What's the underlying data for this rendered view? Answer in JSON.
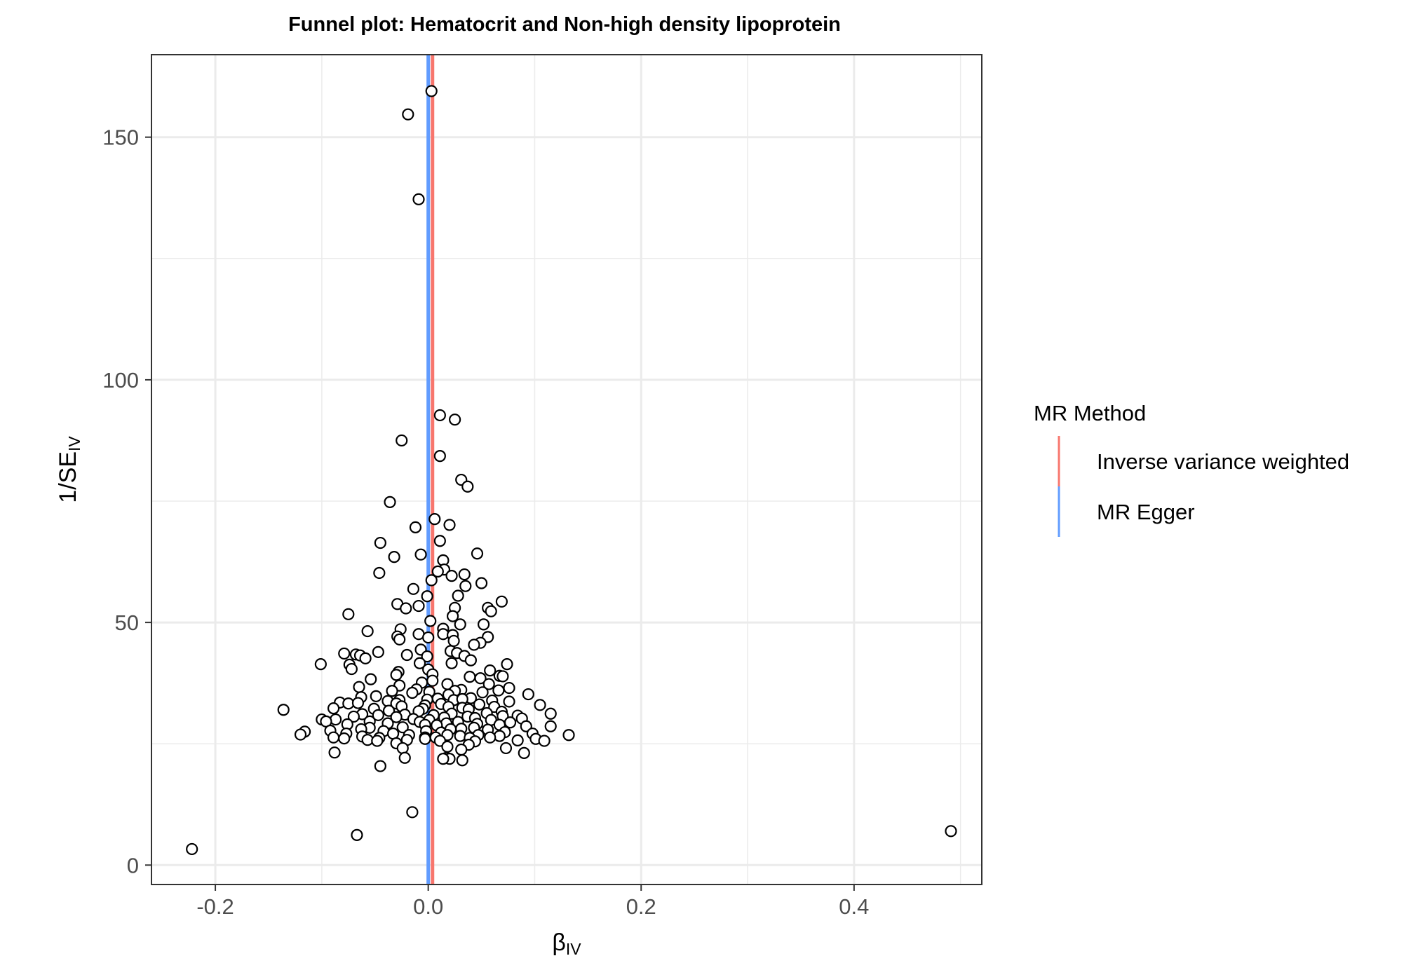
{
  "chart_data": {
    "type": "scatter",
    "title": "Funnel plot: Hematocrit and Non-high density lipoprotein",
    "xlabel": {
      "main": "β",
      "sub": "IV"
    },
    "ylabel": {
      "main": "1/SE",
      "sub": "IV"
    },
    "xlim": [
      -0.26,
      0.52
    ],
    "ylim": [
      -4,
      167
    ],
    "x_ticks": [
      -0.2,
      0.0,
      0.2,
      0.4
    ],
    "x_tick_labels": [
      "-0.2",
      "0.0",
      "0.2",
      "0.4"
    ],
    "y_ticks": [
      0,
      50,
      100,
      150
    ],
    "y_tick_labels": [
      "0",
      "50",
      "100",
      "150"
    ],
    "grid": true,
    "legend": {
      "title": "MR Method",
      "placement": "right",
      "entries": [
        {
          "label": "Inverse variance weighted",
          "color": "#F8766D"
        },
        {
          "label": "MR Egger",
          "color": "#619CFF"
        }
      ]
    },
    "vlines": [
      {
        "name": "Inverse variance weighted",
        "x": 0.004,
        "color": "#F8766D"
      },
      {
        "name": "MR Egger",
        "x": 0.0,
        "color": "#619CFF"
      }
    ],
    "series": [
      {
        "points": [
          [
            0.003,
            159.5
          ],
          [
            -0.019,
            154.7
          ],
          [
            -0.009,
            137.2
          ],
          [
            0.011,
            92.7
          ],
          [
            0.025,
            91.8
          ],
          [
            -0.025,
            87.5
          ],
          [
            0.011,
            84.3
          ],
          [
            0.031,
            79.4
          ],
          [
            0.037,
            78.0
          ],
          [
            -0.036,
            74.8
          ],
          [
            0.006,
            71.3
          ],
          [
            0.02,
            70.1
          ],
          [
            -0.012,
            69.6
          ],
          [
            0.011,
            66.8
          ],
          [
            -0.045,
            66.4
          ],
          [
            0.046,
            64.2
          ],
          [
            -0.007,
            64.0
          ],
          [
            -0.032,
            63.5
          ],
          [
            0.014,
            62.8
          ],
          [
            0.015,
            60.9
          ],
          [
            0.009,
            60.5
          ],
          [
            -0.046,
            60.2
          ],
          [
            0.034,
            59.9
          ],
          [
            0.022,
            59.6
          ],
          [
            0.003,
            58.7
          ],
          [
            0.05,
            58.1
          ],
          [
            0.035,
            57.5
          ],
          [
            -0.014,
            56.9
          ],
          [
            0.028,
            55.5
          ],
          [
            -0.001,
            55.4
          ],
          [
            0.069,
            54.3
          ],
          [
            -0.029,
            53.8
          ],
          [
            -0.009,
            53.4
          ],
          [
            0.025,
            53.0
          ],
          [
            0.056,
            53.0
          ],
          [
            -0.021,
            52.9
          ],
          [
            0.059,
            52.3
          ],
          [
            -0.075,
            51.7
          ],
          [
            0.023,
            51.3
          ],
          [
            0.002,
            50.3
          ],
          [
            0.03,
            49.6
          ],
          [
            0.052,
            49.6
          ],
          [
            0.014,
            48.7
          ],
          [
            -0.026,
            48.6
          ],
          [
            -0.057,
            48.2
          ],
          [
            0.014,
            47.6
          ],
          [
            -0.009,
            47.6
          ],
          [
            0.023,
            47.4
          ],
          [
            -0.029,
            47.1
          ],
          [
            0.056,
            47.0
          ],
          [
            0.0,
            46.9
          ],
          [
            0.024,
            46.2
          ],
          [
            0.049,
            45.8
          ],
          [
            -0.027,
            46.5
          ],
          [
            0.043,
            45.4
          ],
          [
            -0.007,
            44.4
          ],
          [
            0.021,
            44.1
          ],
          [
            -0.047,
            43.9
          ],
          [
            0.027,
            43.7
          ],
          [
            -0.068,
            43.4
          ],
          [
            -0.079,
            43.6
          ],
          [
            -0.064,
            43.2
          ],
          [
            -0.02,
            43.3
          ],
          [
            0.034,
            43.1
          ],
          [
            -0.001,
            43.0
          ],
          [
            -0.059,
            42.6
          ],
          [
            0.04,
            42.2
          ],
          [
            -0.008,
            41.6
          ],
          [
            0.022,
            41.6
          ],
          [
            -0.101,
            41.4
          ],
          [
            -0.074,
            41.3
          ],
          [
            0.074,
            41.4
          ],
          [
            -0.072,
            40.4
          ],
          [
            0.0,
            40.3
          ],
          [
            0.058,
            40.1
          ],
          [
            -0.028,
            39.8
          ],
          [
            0.004,
            39.3
          ],
          [
            -0.03,
            39.2
          ],
          [
            0.067,
            39.0
          ],
          [
            0.07,
            38.9
          ],
          [
            0.039,
            38.8
          ],
          [
            0.049,
            38.5
          ],
          [
            -0.054,
            38.3
          ],
          [
            0.004,
            38.0
          ],
          [
            -0.006,
            37.6
          ],
          [
            0.018,
            37.3
          ],
          [
            0.057,
            37.3
          ],
          [
            -0.027,
            37.0
          ],
          [
            -0.065,
            36.7
          ],
          [
            0.076,
            36.5
          ],
          [
            -0.011,
            36.2
          ],
          [
            0.031,
            36.1
          ],
          [
            0.066,
            36.0
          ],
          [
            -0.034,
            35.9
          ],
          [
            0.025,
            35.9
          ],
          [
            0.001,
            35.7
          ],
          [
            0.051,
            35.6
          ],
          [
            -0.015,
            35.5
          ],
          [
            0.094,
            35.2
          ],
          [
            0.019,
            35.1
          ],
          [
            -0.049,
            34.8
          ],
          [
            -0.063,
            34.6
          ],
          [
            0.04,
            34.4
          ],
          [
            0.009,
            34.3
          ],
          [
            0.024,
            34.0
          ],
          [
            -0.027,
            34.0
          ],
          [
            0.032,
            34.2
          ],
          [
            -0.001,
            34.1
          ],
          [
            -0.038,
            33.8
          ],
          [
            0.06,
            33.9
          ],
          [
            0.076,
            33.7
          ],
          [
            -0.083,
            33.5
          ],
          [
            -0.075,
            33.3
          ],
          [
            -0.066,
            33.4
          ],
          [
            -0.03,
            33.3
          ],
          [
            0.012,
            33.2
          ],
          [
            0.048,
            33.1
          ],
          [
            0.105,
            33.0
          ],
          [
            -0.003,
            32.9
          ],
          [
            -0.025,
            32.7
          ],
          [
            0.019,
            32.6
          ],
          [
            0.032,
            32.4
          ],
          [
            0.062,
            32.6
          ],
          [
            -0.089,
            32.3
          ],
          [
            -0.051,
            32.2
          ],
          [
            -0.005,
            32.2
          ],
          [
            0.038,
            32.1
          ],
          [
            -0.136,
            32.0
          ],
          [
            -0.037,
            31.8
          ],
          [
            -0.009,
            31.7
          ],
          [
            0.069,
            31.6
          ],
          [
            0.115,
            31.2
          ],
          [
            0.022,
            31.2
          ],
          [
            0.055,
            31.3
          ],
          [
            -0.062,
            31.1
          ],
          [
            -0.047,
            30.9
          ],
          [
            -0.022,
            31.0
          ],
          [
            0.005,
            30.9
          ],
          [
            0.084,
            30.8
          ],
          [
            0.07,
            30.7
          ],
          [
            0.037,
            30.6
          ],
          [
            -0.07,
            30.6
          ],
          [
            -0.03,
            30.5
          ],
          [
            0.015,
            30.4
          ],
          [
            0.044,
            30.3
          ],
          [
            0.088,
            30.2
          ],
          [
            -0.1,
            30.0
          ],
          [
            -0.014,
            30.1
          ],
          [
            -0.087,
            30.0
          ],
          [
            0.001,
            29.9
          ],
          [
            0.059,
            29.9
          ],
          [
            -0.096,
            29.6
          ],
          [
            -0.055,
            29.6
          ],
          [
            -0.008,
            29.5
          ],
          [
            0.028,
            29.5
          ],
          [
            0.077,
            29.4
          ],
          [
            -0.038,
            29.2
          ],
          [
            0.017,
            29.2
          ],
          [
            0.046,
            29.1
          ],
          [
            -0.076,
            29.0
          ],
          [
            -0.003,
            28.9
          ],
          [
            0.008,
            28.8
          ],
          [
            0.067,
            28.9
          ],
          [
            0.115,
            28.6
          ],
          [
            0.092,
            28.6
          ],
          [
            -0.024,
            28.4
          ],
          [
            -0.055,
            28.3
          ],
          [
            0.043,
            28.3
          ],
          [
            0.031,
            28.1
          ],
          [
            -0.063,
            28.0
          ],
          [
            0.021,
            28.0
          ],
          [
            0.056,
            27.9
          ],
          [
            -0.092,
            27.7
          ],
          [
            -0.116,
            27.5
          ],
          [
            -0.042,
            27.6
          ],
          [
            -0.002,
            27.6
          ],
          [
            0.012,
            27.3
          ],
          [
            0.072,
            27.4
          ],
          [
            -0.077,
            27.1
          ],
          [
            -0.033,
            27.1
          ],
          [
            0.098,
            27.1
          ],
          [
            -0.12,
            26.9
          ],
          [
            -0.018,
            26.8
          ],
          [
            0.018,
            26.8
          ],
          [
            0.047,
            26.8
          ],
          [
            0.132,
            26.8
          ],
          [
            -0.062,
            26.5
          ],
          [
            0.03,
            26.6
          ],
          [
            0.067,
            26.6
          ],
          [
            -0.089,
            26.3
          ],
          [
            -0.046,
            26.2
          ],
          [
            -0.003,
            26.3
          ],
          [
            0.007,
            26.3
          ],
          [
            0.039,
            26.2
          ],
          [
            0.058,
            26.3
          ],
          [
            -0.079,
            26.1
          ],
          [
            -0.003,
            26.0
          ],
          [
            0.101,
            26.0
          ],
          [
            -0.057,
            25.8
          ],
          [
            -0.02,
            25.8
          ],
          [
            0.084,
            25.7
          ],
          [
            -0.048,
            25.6
          ],
          [
            0.011,
            25.6
          ],
          [
            0.044,
            25.5
          ],
          [
            0.109,
            25.6
          ],
          [
            -0.03,
            25.1
          ],
          [
            0.038,
            24.8
          ],
          [
            0.018,
            24.4
          ],
          [
            0.073,
            24.1
          ],
          [
            -0.024,
            24.1
          ],
          [
            0.031,
            23.8
          ],
          [
            -0.088,
            23.2
          ],
          [
            0.09,
            23.1
          ],
          [
            -0.022,
            22.1
          ],
          [
            0.017,
            22.1
          ],
          [
            0.02,
            21.9
          ],
          [
            0.014,
            21.9
          ],
          [
            0.032,
            21.6
          ],
          [
            -0.045,
            20.4
          ],
          [
            -0.015,
            10.9
          ],
          [
            -0.067,
            6.2
          ],
          [
            0.491,
            7.0
          ],
          [
            -0.222,
            3.3
          ]
        ]
      }
    ]
  }
}
